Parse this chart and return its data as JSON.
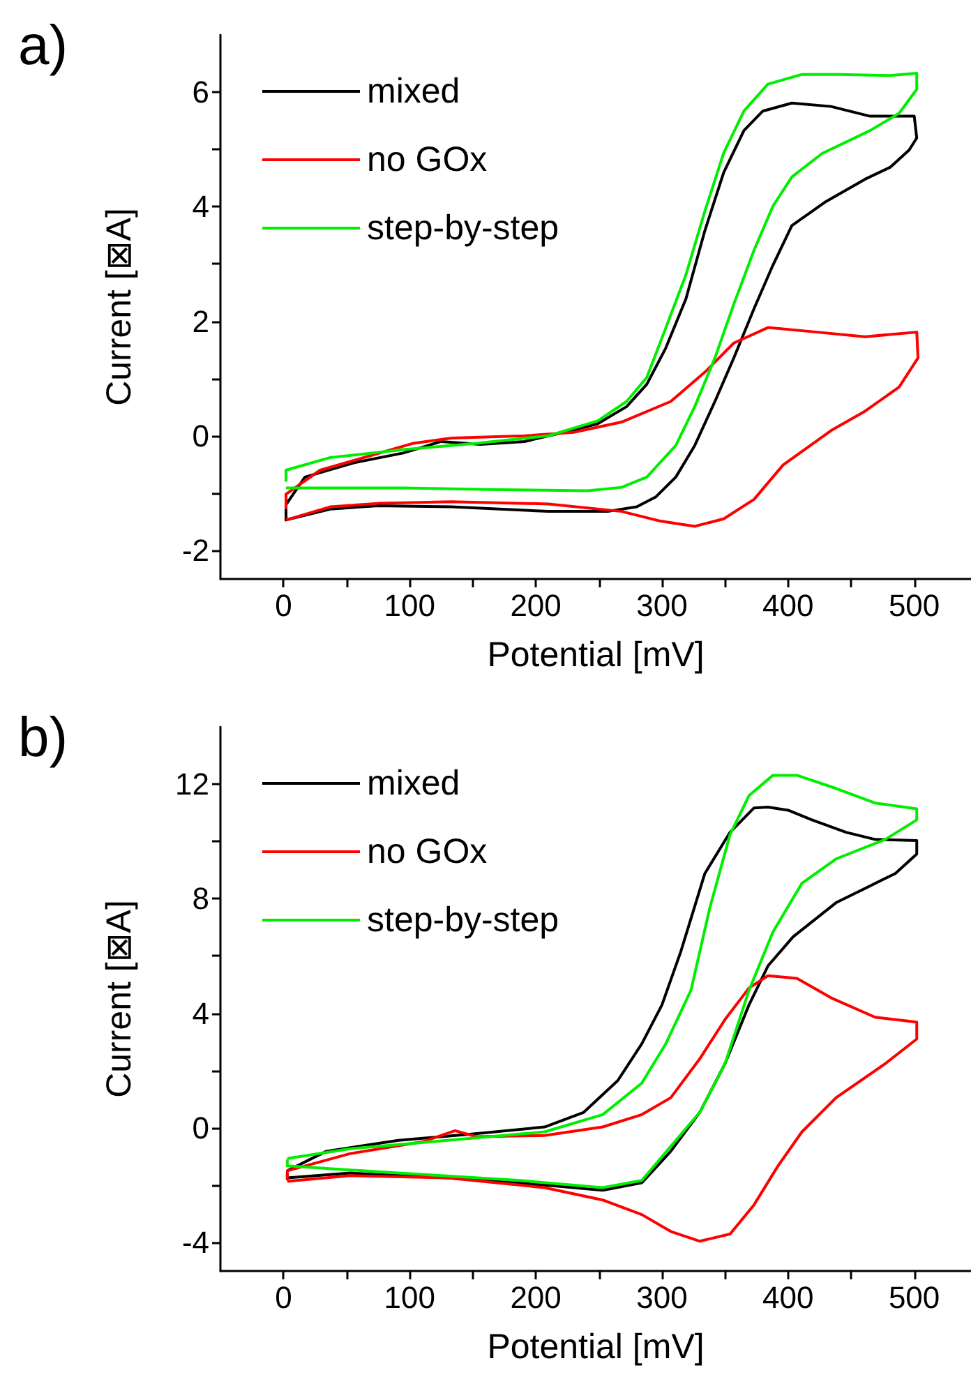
{
  "chart_data": [
    {
      "type": "line",
      "title": "a)",
      "xlabel": "Potential [mV]",
      "ylabel": "Current [⊠A]",
      "xlim": [
        -50,
        545
      ],
      "ylim": [
        -2.5,
        7
      ],
      "xticks": [
        0,
        {
          "value": 50,
          "label": null
        },
        100,
        {
          "value": 150,
          "label": null
        },
        200,
        {
          "value": 250,
          "label": null
        },
        300,
        {
          "value": 350,
          "label": null
        },
        400,
        {
          "value": 450,
          "label": null
        },
        500
      ],
      "yticks": [
        -2,
        {
          "value": -1,
          "label": null
        },
        0,
        {
          "value": 1,
          "label": null
        },
        2,
        {
          "value": 3,
          "label": null
        },
        4,
        {
          "value": 5,
          "label": null
        },
        6
      ],
      "legend": "top left",
      "series": [
        {
          "name": "mixed",
          "color": "#000000",
          "x": [
            2,
            17,
            56,
            95,
            125,
            156,
            191,
            218,
            249,
            272,
            288,
            303,
            319,
            334,
            349,
            365,
            380,
            403,
            434,
            465,
            500,
            502,
            496,
            481,
            461,
            430,
            403,
            388,
            373,
            357,
            342,
            326,
            311,
            295,
            280,
            257,
            210,
            133,
            75,
            37,
            2,
            2
          ],
          "values": [
            -1.2,
            -0.72,
            -0.47,
            -0.3,
            -0.1,
            -0.15,
            -0.1,
            0.04,
            0.21,
            0.51,
            0.9,
            1.53,
            2.39,
            3.58,
            4.6,
            5.33,
            5.67,
            5.81,
            5.75,
            5.58,
            5.58,
            5.2,
            4.99,
            4.69,
            4.48,
            4.09,
            3.67,
            2.98,
            2.22,
            1.36,
            0.6,
            -0.17,
            -0.72,
            -1.07,
            -1.24,
            -1.32,
            -1.32,
            -1.24,
            -1.22,
            -1.28,
            -1.47,
            -1.25
          ]
        },
        {
          "name": "no GOx",
          "color": "#ff0000",
          "x": [
            2,
            2,
            29,
            56,
            103,
            133,
            191,
            230,
            268,
            307,
            334,
            357,
            384,
            423,
            461,
            502,
            503,
            488,
            461,
            434,
            396,
            373,
            349,
            326,
            299,
            268,
            210,
            133,
            75,
            37,
            2
          ],
          "values": [
            -1.28,
            -1.02,
            -0.6,
            -0.43,
            -0.13,
            -0.04,
            0,
            0.06,
            0.24,
            0.6,
            1.11,
            1.62,
            1.89,
            1.81,
            1.73,
            1.81,
            1.36,
            0.85,
            0.43,
            0.09,
            -0.51,
            -1.11,
            -1.45,
            -1.58,
            -1.49,
            -1.32,
            -1.19,
            -1.15,
            -1.18,
            -1.24,
            -1.47
          ]
        },
        {
          "name": "step-by-step",
          "color": "#00ee00",
          "x": [
            2,
            2,
            37,
            95,
            153,
            210,
            249,
            272,
            288,
            303,
            319,
            334,
            349,
            365,
            384,
            411,
            442,
            481,
            502,
            502,
            488,
            465,
            427,
            403,
            388,
            373,
            357,
            342,
            326,
            311,
            288,
            268,
            241,
            172,
            95,
            2
          ],
          "values": [
            -0.8,
            -0.6,
            -0.38,
            -0.24,
            -0.13,
            0,
            0.26,
            0.6,
            1.02,
            1.88,
            2.81,
            3.92,
            4.94,
            5.67,
            6.14,
            6.31,
            6.31,
            6.29,
            6.33,
            6.05,
            5.63,
            5.33,
            4.93,
            4.52,
            4.01,
            3.24,
            2.3,
            1.36,
            0.51,
            -0.17,
            -0.72,
            -0.9,
            -0.96,
            -0.94,
            -0.91,
            -0.91
          ]
        }
      ]
    },
    {
      "type": "line",
      "title": "b)",
      "xlabel": "Potential [mV]",
      "ylabel": "Current [⊠A]",
      "xlim": [
        -50,
        545
      ],
      "ylim": [
        -5,
        14
      ],
      "xticks": [
        0,
        {
          "value": 50,
          "label": null
        },
        100,
        {
          "value": 150,
          "label": null
        },
        200,
        {
          "value": 250,
          "label": null
        },
        300,
        {
          "value": 350,
          "label": null
        },
        400,
        {
          "value": 450,
          "label": null
        },
        500
      ],
      "yticks": [
        -4,
        {
          "value": -2,
          "label": null
        },
        0,
        {
          "value": 2,
          "label": null
        },
        4,
        {
          "value": 6,
          "label": null
        },
        8,
        {
          "value": 10,
          "label": null
        },
        12
      ],
      "legend": "top left",
      "series": [
        {
          "name": "mixed",
          "color": "#000000",
          "x": [
            3,
            34,
            91,
            149,
            207,
            238,
            265,
            284,
            300,
            315,
            334,
            354,
            373,
            384,
            400,
            419,
            446,
            469,
            502,
            502,
            485,
            438,
            404,
            384,
            369,
            350,
            330,
            307,
            284,
            253,
            207,
            130,
            53,
            3,
            3
          ],
          "values": [
            -1.5,
            -0.82,
            -0.44,
            -0.22,
            0.03,
            0.54,
            1.65,
            2.93,
            4.29,
            6.16,
            8.88,
            10.32,
            11.17,
            11.2,
            11.09,
            10.75,
            10.32,
            10.07,
            10.03,
            9.56,
            8.88,
            7.86,
            6.67,
            5.65,
            4.29,
            2.24,
            0.54,
            -0.82,
            -1.92,
            -2.18,
            -2,
            -1.75,
            -1.58,
            -1.75,
            -1.6
          ]
        },
        {
          "name": "no GOx",
          "color": "#ff0000",
          "x": [
            3,
            3,
            53,
            111,
            136,
            153,
            207,
            253,
            284,
            307,
            330,
            350,
            369,
            384,
            407,
            434,
            469,
            502,
            502,
            477,
            438,
            411,
            392,
            373,
            354,
            330,
            307,
            284,
            253,
            207,
            130,
            53,
            3
          ],
          "values": [
            -1.84,
            -1.5,
            -0.9,
            -0.48,
            -0.1,
            -0.31,
            -0.27,
            0.03,
            0.46,
            1.05,
            2.41,
            3.78,
            4.88,
            5.31,
            5.22,
            4.54,
            3.86,
            3.69,
            3.1,
            2.24,
            1.05,
            -0.14,
            -1.33,
            -2.69,
            -3.71,
            -3.96,
            -3.62,
            -3.03,
            -2.52,
            -2.09,
            -1.75,
            -1.67,
            -1.87
          ]
        },
        {
          "name": "step-by-step",
          "color": "#00ee00",
          "x": [
            3,
            53,
            130,
            207,
            253,
            284,
            303,
            323,
            338,
            354,
            369,
            388,
            407,
            438,
            469,
            502,
            502,
            477,
            438,
            411,
            388,
            369,
            350,
            330,
            307,
            284,
            253,
            188,
            91,
            3,
            3
          ],
          "values": [
            -1.07,
            -0.73,
            -0.44,
            -0.14,
            0.46,
            1.56,
            2.93,
            4.8,
            7.69,
            10.24,
            11.6,
            12.31,
            12.31,
            11.85,
            11.34,
            11.14,
            10.75,
            10.07,
            9.39,
            8.54,
            6.84,
            4.8,
            2.24,
            0.54,
            -0.65,
            -1.84,
            -2.09,
            -1.84,
            -1.58,
            -1.33,
            -1.1
          ]
        }
      ]
    }
  ]
}
